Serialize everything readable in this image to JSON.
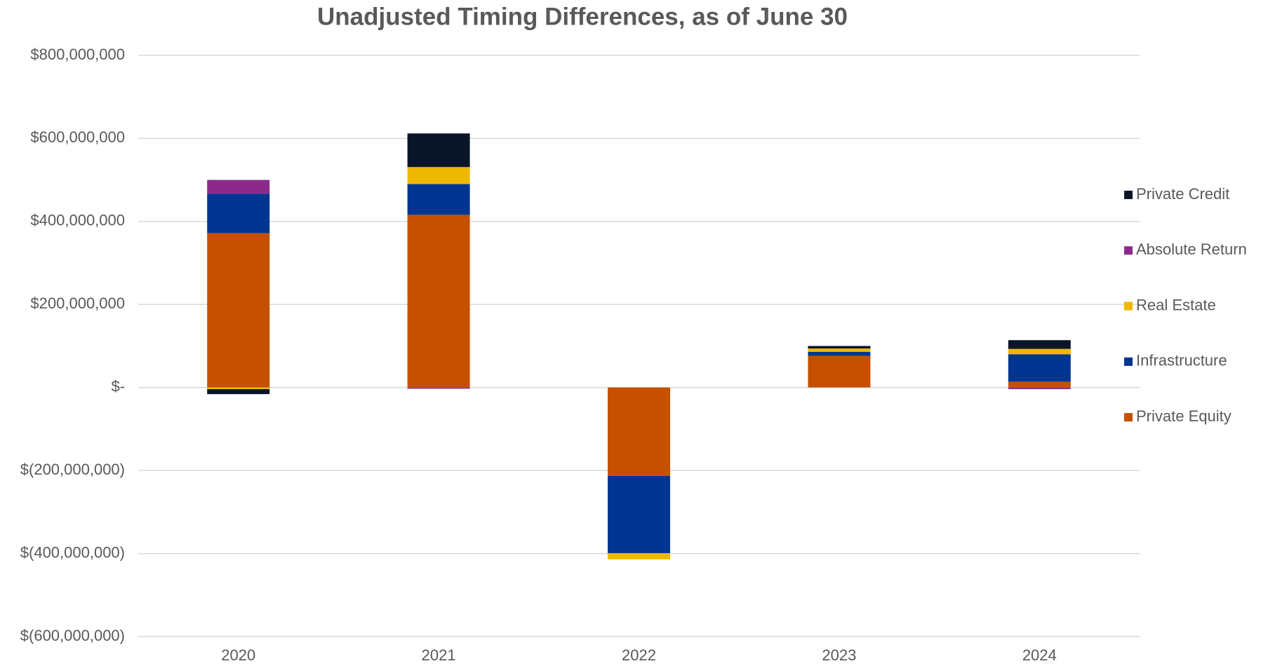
{
  "chart_data": {
    "type": "stacked_bar",
    "title": "Unadjusted Timing Differences, as of June 30",
    "categories": [
      "2020",
      "2021",
      "2022",
      "2023",
      "2024"
    ],
    "series": [
      {
        "name": "Private Equity",
        "color": "#c65000",
        "values": [
          372000000,
          416000000,
          -213000000,
          76000000,
          14000000
        ]
      },
      {
        "name": "Infrastructure",
        "color": "#003591",
        "values": [
          95000000,
          74000000,
          -186000000,
          10000000,
          66000000
        ]
      },
      {
        "name": "Real Estate",
        "color": "#efb800",
        "values": [
          -4000000,
          41000000,
          -15000000,
          8000000,
          13000000
        ]
      },
      {
        "name": "Absolute Return",
        "color": "#8c2a8c",
        "values": [
          33000000,
          -3000000,
          0,
          0,
          -4000000
        ]
      },
      {
        "name": "Private Credit",
        "color": "#0a1628",
        "values": [
          -12000000,
          81000000,
          0,
          6000000,
          21000000
        ]
      }
    ],
    "ylim": [
      -600000000,
      800000000
    ],
    "yticks": [
      {
        "value": -600000000,
        "label": "$(600,000,000)"
      },
      {
        "value": -400000000,
        "label": "$(400,000,000)"
      },
      {
        "value": -200000000,
        "label": "$(200,000,000)"
      },
      {
        "value": 0,
        "label": "$-"
      },
      {
        "value": 200000000,
        "label": "$200,000,000"
      },
      {
        "value": 400000000,
        "label": "$400,000,000"
      },
      {
        "value": 600000000,
        "label": "$600,000,000"
      },
      {
        "value": 800000000,
        "label": "$800,000,000"
      }
    ],
    "grid": true,
    "legend": "right"
  }
}
